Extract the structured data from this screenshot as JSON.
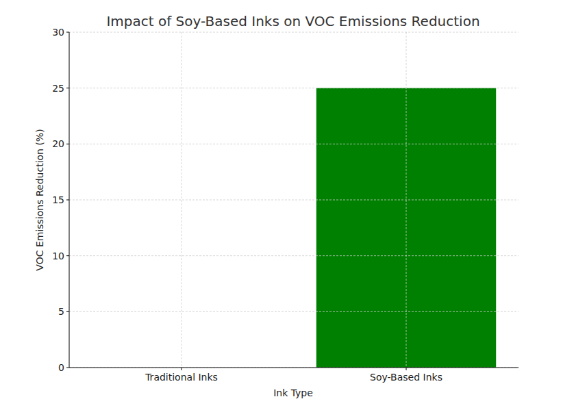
{
  "chart_data": {
    "type": "bar",
    "title": "Impact of Soy-Based Inks on VOC Emissions Reduction",
    "x_label": "Ink Type",
    "y_label": "VOC Emissions Reduction (%)",
    "categories": [
      "Traditional Inks",
      "Soy-Based Inks"
    ],
    "values": [
      0,
      25
    ],
    "color": "#008000",
    "ylim": [
      0,
      30
    ],
    "yticks": [
      0,
      5,
      10,
      15,
      20,
      25,
      30
    ],
    "grid": true
  }
}
